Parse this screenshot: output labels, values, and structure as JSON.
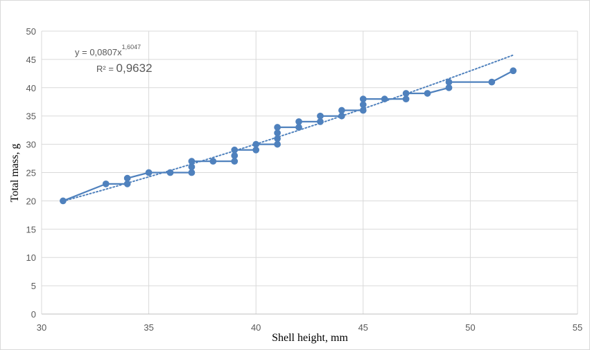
{
  "chart_data": {
    "type": "scatter",
    "xlabel": "Shell height, mm",
    "ylabel": "Total mass, g",
    "xlim": [
      30,
      55
    ],
    "ylim": [
      0,
      50
    ],
    "xticks": [
      30,
      35,
      40,
      45,
      50,
      55
    ],
    "yticks": [
      0,
      5,
      10,
      15,
      20,
      25,
      30,
      35,
      40,
      45,
      50
    ],
    "grid": true,
    "series": [
      {
        "color": "#4f81bd",
        "points": [
          [
            31,
            20
          ],
          [
            33,
            23
          ],
          [
            34,
            23
          ],
          [
            34,
            24
          ],
          [
            35,
            25
          ],
          [
            36,
            25
          ],
          [
            37,
            25
          ],
          [
            37,
            26
          ],
          [
            37,
            27
          ],
          [
            38,
            27
          ],
          [
            39,
            27
          ],
          [
            39,
            28
          ],
          [
            39,
            29
          ],
          [
            40,
            29
          ],
          [
            40,
            30
          ],
          [
            41,
            30
          ],
          [
            41,
            31
          ],
          [
            41,
            32
          ],
          [
            41,
            33
          ],
          [
            42,
            33
          ],
          [
            42,
            34
          ],
          [
            43,
            34
          ],
          [
            43,
            35
          ],
          [
            44,
            35
          ],
          [
            44,
            36
          ],
          [
            45,
            36
          ],
          [
            45,
            37
          ],
          [
            45,
            38
          ],
          [
            46,
            38
          ],
          [
            47,
            38
          ],
          [
            47,
            39
          ],
          [
            48,
            39
          ],
          [
            49,
            40
          ],
          [
            49,
            41
          ],
          [
            51,
            41
          ],
          [
            52,
            43
          ]
        ]
      }
    ],
    "trendline": {
      "type": "power",
      "coefficient": 0.0807,
      "exponent": 1.6047,
      "x_range": [
        31,
        52
      ],
      "style": "dotted",
      "color": "#4f81bd"
    },
    "equation": {
      "prefix": "y = 0,0807x",
      "exponent": "1,6047",
      "r2_label": "R² = ",
      "r2_value": "0,9632"
    }
  }
}
